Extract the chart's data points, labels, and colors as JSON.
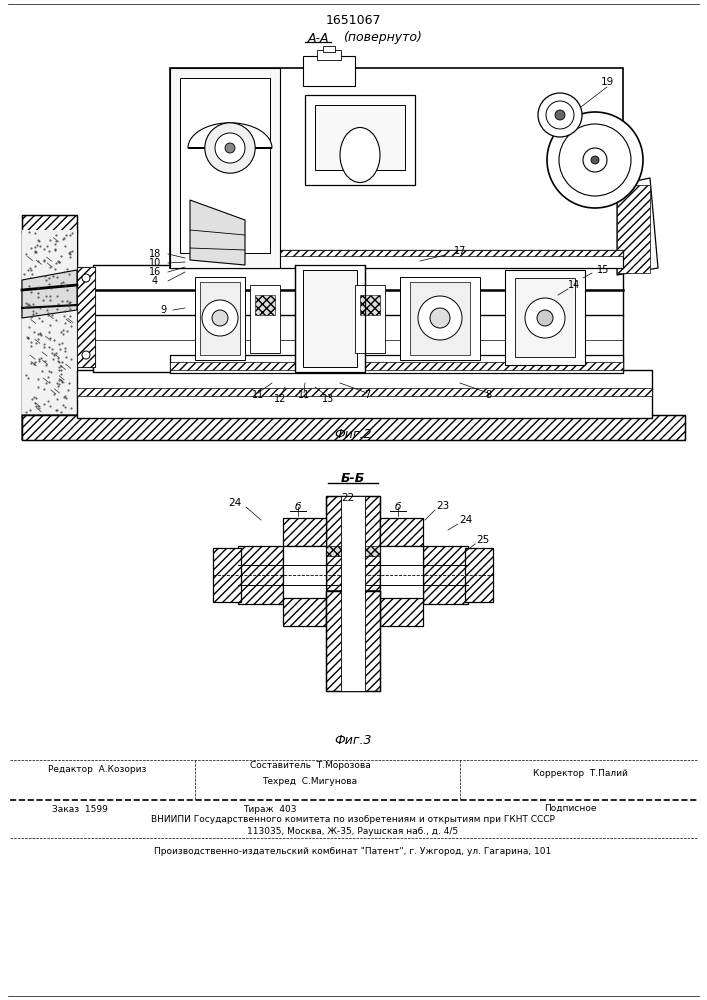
{
  "patent_number": "1651067",
  "section_a_label_1": "А-А",
  "section_a_label_2": "(повернуто)",
  "section_b_label": "Б-Б",
  "fig2_label": "Фиг.2",
  "fig3_label": "Фиг.3",
  "footer_editor": "Редактор  А.Козориз",
  "footer_composer": "Составитель  Т.Морозова",
  "footer_corrector": "Корректор  Т.Палий",
  "footer_techred": "Техред  С.Мигунова",
  "footer_order": "Заказ  1599",
  "footer_print": "Тираж  403",
  "footer_subscription": "Подписное",
  "footer_vniipи": "ВНИИПИ Государственного комитета по изобретениям и открытиям при ГКНТ СССР",
  "footer_address": "113035, Москва, Ж-35, Раушская наб., д. 4/5",
  "footer_publisher": "Производственно-издательский комбинат \"Патент\", г. Ужгород, ул. Гагарина, 101",
  "bg_color": "#ffffff"
}
